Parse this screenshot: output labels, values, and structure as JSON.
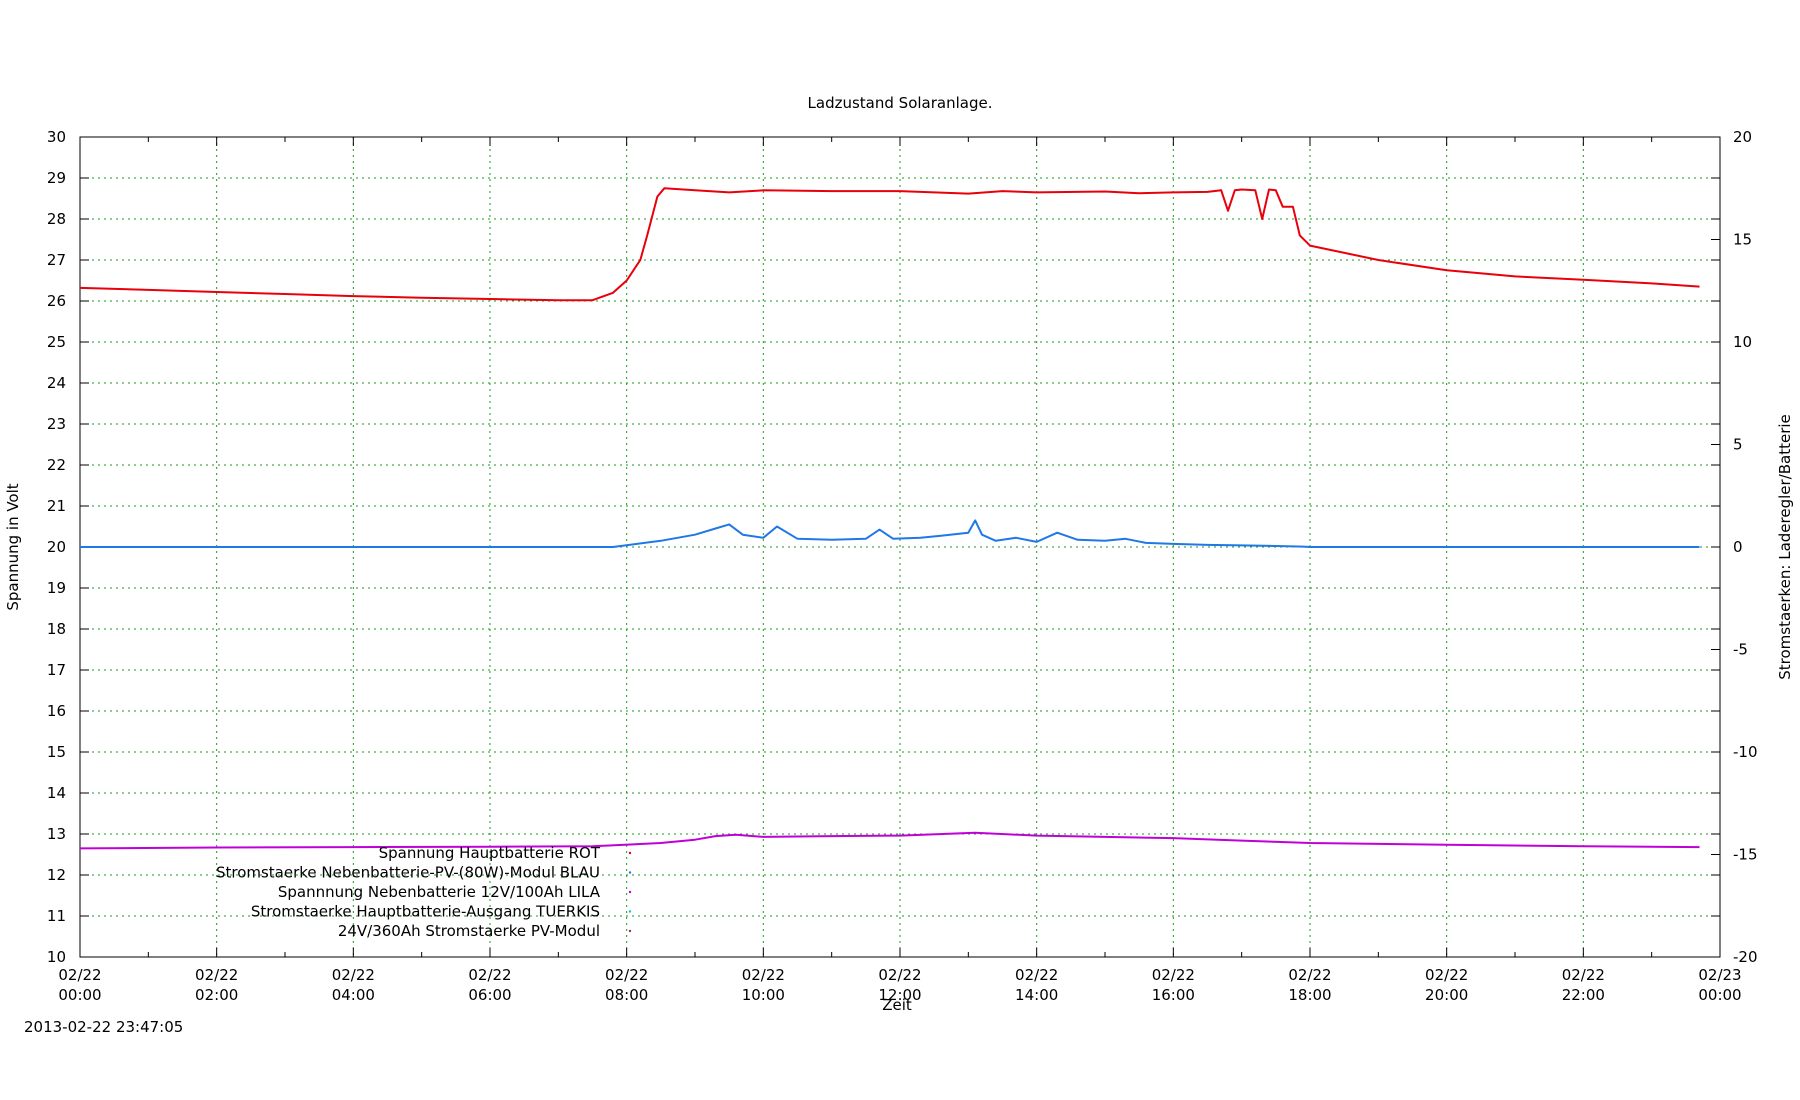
{
  "chart_data": {
    "type": "line",
    "title": "Ladzustand Solaranlage.",
    "xlabel": "Zeit",
    "ylabel": "Spannung in Volt",
    "y2label": "Stromstaerken: Laderegler/Batterie",
    "timestamp": "2013-02-22 23:47:05",
    "grid": true,
    "legend_position": "bottom-left",
    "x_range": [
      0,
      24
    ],
    "y_range": [
      10,
      30
    ],
    "y2_range": [
      -20,
      20
    ],
    "x_ticks": [
      {
        "date": "02/22",
        "time": "00:00"
      },
      {
        "date": "02/22",
        "time": "02:00"
      },
      {
        "date": "02/22",
        "time": "04:00"
      },
      {
        "date": "02/22",
        "time": "06:00"
      },
      {
        "date": "02/22",
        "time": "08:00"
      },
      {
        "date": "02/22",
        "time": "10:00"
      },
      {
        "date": "02/22",
        "time": "12:00"
      },
      {
        "date": "02/22",
        "time": "14:00"
      },
      {
        "date": "02/22",
        "time": "16:00"
      },
      {
        "date": "02/22",
        "time": "18:00"
      },
      {
        "date": "02/22",
        "time": "20:00"
      },
      {
        "date": "02/22",
        "time": "22:00"
      },
      {
        "date": "02/23",
        "time": "00:00"
      }
    ],
    "y_ticks": [
      "30",
      "29",
      "28",
      "27",
      "26",
      "25",
      "24",
      "23",
      "22",
      "21",
      "20",
      "19",
      "18",
      "17",
      "16",
      "15",
      "14",
      "13",
      "12",
      "11",
      "10"
    ],
    "y2_ticks": [
      "20",
      "15",
      "10",
      "5",
      "0",
      "-5",
      "-10",
      "-15",
      "-20"
    ],
    "series": [
      {
        "name": "Spannung Hauptbatterie ROT",
        "color": "#e8000b",
        "axis": "y",
        "x": [
          0,
          1,
          2,
          3,
          4,
          5,
          6,
          7,
          7.5,
          7.8,
          8.0,
          8.2,
          8.3,
          8.45,
          8.55,
          9,
          9.5,
          10,
          11,
          12,
          13,
          13.5,
          14,
          15,
          15.5,
          16,
          16.5,
          16.7,
          16.8,
          16.9,
          17.0,
          17.2,
          17.3,
          17.4,
          17.5,
          17.6,
          17.75,
          17.85,
          18,
          19,
          20,
          21,
          22,
          23,
          23.7
        ],
        "values": [
          26.32,
          26.27,
          26.22,
          26.17,
          26.12,
          26.08,
          26.05,
          26.02,
          26.02,
          26.2,
          26.5,
          27.0,
          27.6,
          28.55,
          28.75,
          28.7,
          28.65,
          28.7,
          28.68,
          28.68,
          28.62,
          28.68,
          28.65,
          28.67,
          28.63,
          28.65,
          28.66,
          28.7,
          28.2,
          28.7,
          28.72,
          28.7,
          28.0,
          28.72,
          28.7,
          28.3,
          28.3,
          27.6,
          27.35,
          27.0,
          26.75,
          26.6,
          26.52,
          26.43,
          26.35
        ]
      },
      {
        "name": "Stromstaerke Nebenbatterie-PV-(80W)-Modul BLAU",
        "color": "#1f78e6",
        "axis": "y2",
        "x": [
          0,
          7.8,
          8.5,
          9,
          9.3,
          9.5,
          9.7,
          10,
          10.2,
          10.5,
          11,
          11.5,
          11.7,
          11.9,
          12.3,
          12.6,
          13,
          13.1,
          13.2,
          13.4,
          13.7,
          14,
          14.3,
          14.6,
          15,
          15.3,
          15.6,
          16,
          16.5,
          17,
          17.5,
          17.9,
          18,
          23.7
        ],
        "values": [
          0,
          0,
          0.3,
          0.6,
          0.9,
          1.1,
          0.6,
          0.45,
          1.0,
          0.4,
          0.35,
          0.4,
          0.85,
          0.4,
          0.45,
          0.55,
          0.7,
          1.3,
          0.6,
          0.3,
          0.45,
          0.25,
          0.7,
          0.35,
          0.3,
          0.4,
          0.2,
          0.15,
          0.1,
          0.08,
          0.05,
          0.02,
          0,
          0
        ]
      },
      {
        "name": "Spannnung Nebenbatterie 12V/100Ah LILA",
        "color": "#c000d8",
        "axis": "y",
        "x": [
          0,
          2,
          4,
          6,
          7.5,
          8.5,
          9.0,
          9.3,
          9.6,
          10,
          11,
          12,
          13.1,
          14,
          15,
          16,
          17,
          18,
          20,
          22,
          23.7
        ],
        "values": [
          12.65,
          12.67,
          12.68,
          12.69,
          12.7,
          12.78,
          12.86,
          12.95,
          12.98,
          12.93,
          12.95,
          12.96,
          13.03,
          12.96,
          12.93,
          12.9,
          12.84,
          12.78,
          12.74,
          12.7,
          12.68
        ]
      },
      {
        "name": "Stromstaerke Hauptbatterie-Ausgang TUERKIS",
        "color": "#00c8d0",
        "axis": "y2",
        "x": [],
        "values": []
      },
      {
        "name": "24V/360Ah Stromstaerke PV-Modul",
        "color": "#9a2a72",
        "axis": "y2",
        "x": [],
        "values": []
      }
    ]
  }
}
